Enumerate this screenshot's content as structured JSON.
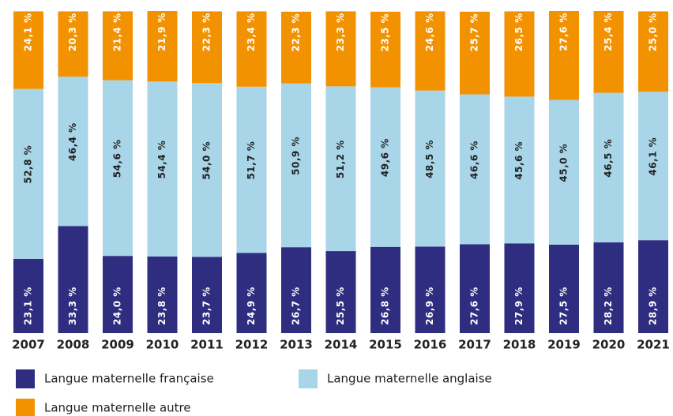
{
  "chart_data": {
    "type": "stacked_bar",
    "categories": [
      "2007",
      "2008",
      "2009",
      "2010",
      "2011",
      "2012",
      "2013",
      "2014",
      "2015",
      "2016",
      "2017",
      "2018",
      "2019",
      "2020",
      "2021"
    ],
    "series": [
      {
        "name": "Langue maternelle française",
        "color": "#2e2d7f",
        "values": [
          23.1,
          33.3,
          24.0,
          23.8,
          23.7,
          24.9,
          26.7,
          25.5,
          26.8,
          26.9,
          27.6,
          27.9,
          27.5,
          28.2,
          28.9
        ],
        "value_labels": [
          "23,1 %",
          "33,3 %",
          "24,0 %",
          "23,8 %",
          "23,7 %",
          "24,9 %",
          "26,7 %",
          "25,5 %",
          "26,8 %",
          "26,9 %",
          "27,6 %",
          "27,9 %",
          "27,5 %",
          "28,2 %",
          "28,9 %"
        ]
      },
      {
        "name": "Langue maternelle anglaise",
        "color": "#a8d5e8",
        "values": [
          52.8,
          46.4,
          54.6,
          54.4,
          54.0,
          51.7,
          50.9,
          51.2,
          49.6,
          48.5,
          46.6,
          45.6,
          45.0,
          46.5,
          46.1
        ],
        "value_labels": [
          "52,8 %",
          "46,4 %",
          "54,6 %",
          "54,4 %",
          "54,0 %",
          "51,7 %",
          "50,9 %",
          "51,2 %",
          "49,6 %",
          "48,5 %",
          "46,6 %",
          "45,6 %",
          "45,0 %",
          "46,5 %",
          "46,1 %"
        ]
      },
      {
        "name": "Langue maternelle autre",
        "color": "#f39200",
        "values": [
          24.1,
          20.3,
          21.4,
          21.9,
          22.3,
          23.4,
          22.3,
          23.3,
          23.5,
          24.6,
          25.7,
          26.5,
          27.6,
          25.4,
          25.0
        ],
        "value_labels": [
          "24,1 %",
          "20,3 %",
          "21,4 %",
          "21,9 %",
          "22,3 %",
          "23,4 %",
          "22,3 %",
          "23,3 %",
          "23,5 %",
          "24,6 %",
          "25,7 %",
          "26,5 %",
          "27,6 %",
          "25,4 %",
          "25,0 %"
        ]
      }
    ]
  }
}
